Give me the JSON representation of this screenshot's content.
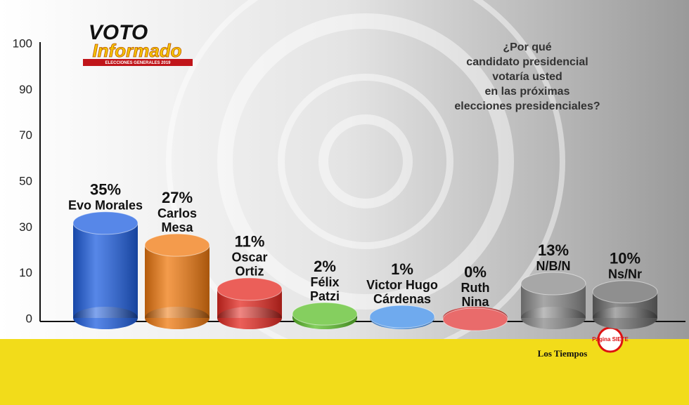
{
  "chart_data": {
    "type": "cylinder-bar",
    "title": [
      "¿Por qué",
      "candidato presidencial",
      "votaría usted",
      "en las próximas",
      "elecciones presidenciales?"
    ],
    "logo": {
      "line1": "VOTO",
      "line2": "Informado",
      "line3": "ELECCIONES GENERALES 2019"
    },
    "sources": [
      "Los Tiempos",
      "Página SIETE"
    ],
    "y_axis_labels": [
      "100",
      "90",
      "70",
      "50",
      "30",
      "10",
      "0"
    ],
    "ylim": [
      0,
      100
    ],
    "categories": [
      [
        "Evo Morales"
      ],
      [
        "Carlos",
        "Mesa"
      ],
      [
        "Oscar",
        "Ortiz"
      ],
      [
        "Félix",
        "Patzi"
      ],
      [
        "Victor Hugo",
        "Cárdenas"
      ],
      [
        "Ruth",
        "Nina"
      ],
      [
        "N/B/N"
      ],
      [
        "Ns/Nr"
      ]
    ],
    "values": [
      35,
      27,
      11,
      2,
      1,
      0,
      13,
      10
    ],
    "value_labels": [
      "35%",
      "27%",
      "11%",
      "2%",
      "1%",
      "0%",
      "13%",
      "10%"
    ],
    "colors": [
      "#1f5fe0",
      "#f07a10",
      "#e52a22",
      "#5cbf2a",
      "#3f8ee8",
      "#e23a3a",
      "#8a8a8a",
      "#6a6a6a"
    ]
  }
}
